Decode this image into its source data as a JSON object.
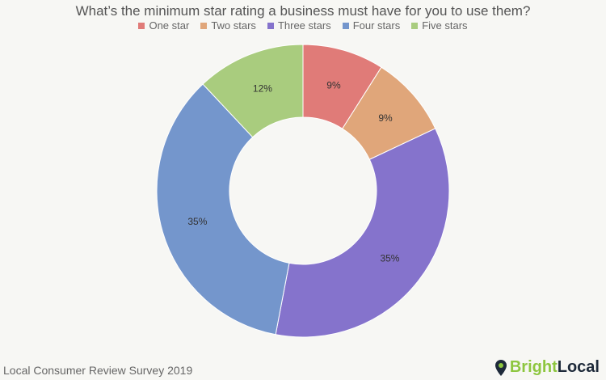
{
  "chart_data": {
    "type": "pie",
    "donut": true,
    "title": "What’s the minimum star rating a business must have for you to use them?",
    "legend_position": "top",
    "categories": [
      "One star",
      "Two stars",
      "Three stars",
      "Four stars",
      "Five stars"
    ],
    "values": [
      9,
      9,
      35,
      35,
      12
    ],
    "data_labels": [
      "9%",
      "9%",
      "35%",
      "35%",
      "12%"
    ],
    "colors": [
      "#e07b78",
      "#e0a67a",
      "#8573cc",
      "#7496cc",
      "#a9cc7e"
    ]
  },
  "footer": "Local Consumer Review Survey 2019",
  "logo": {
    "part1": "Bright",
    "part2": "Local",
    "icon": "map-pin-icon"
  }
}
